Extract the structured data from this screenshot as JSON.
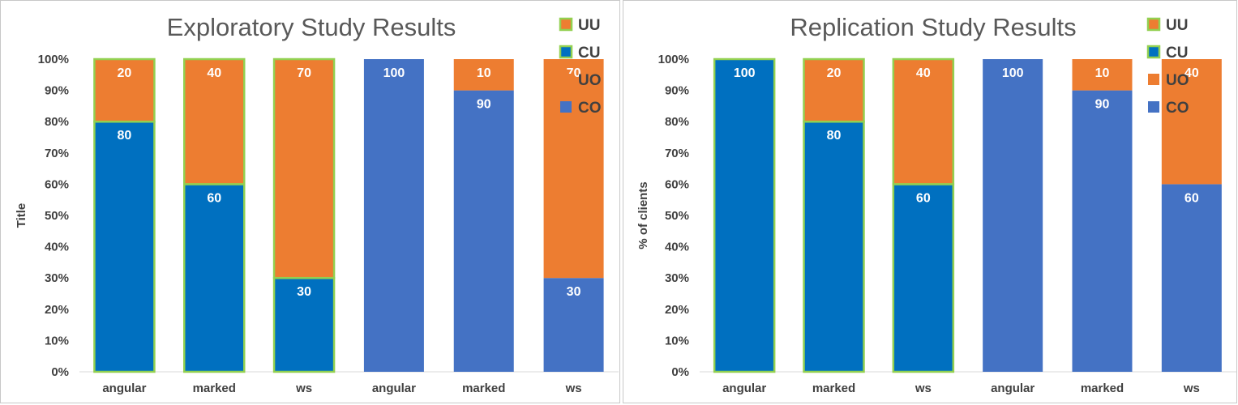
{
  "colors": {
    "UU": "#ED7D31",
    "CU": "#0070C0",
    "UO": "#ED7D31",
    "CO": "#4472C4",
    "outline": "#92D050"
  },
  "chart_data": [
    {
      "type": "bar",
      "stacked": true,
      "percent": true,
      "title": "Exploratory Study Results",
      "xlabel": "",
      "ylabel": "Title",
      "ylim": [
        0,
        100
      ],
      "yticks": [
        "0%",
        "10%",
        "20%",
        "30%",
        "40%",
        "50%",
        "60%",
        "70%",
        "80%",
        "90%",
        "100%"
      ],
      "categories": [
        "angular",
        "marked",
        "ws",
        "angular",
        "marked",
        "ws"
      ],
      "legend_position": "top-right",
      "legend": [
        "UU",
        "CU",
        "UO",
        "CO"
      ],
      "series": [
        {
          "name": "CU",
          "values": [
            80,
            60,
            30,
            0,
            0,
            0
          ]
        },
        {
          "name": "UU",
          "values": [
            20,
            40,
            70,
            0,
            0,
            0
          ]
        },
        {
          "name": "CO",
          "values": [
            0,
            0,
            0,
            100,
            90,
            30
          ]
        },
        {
          "name": "UO",
          "values": [
            0,
            0,
            0,
            0,
            10,
            70
          ]
        }
      ]
    },
    {
      "type": "bar",
      "stacked": true,
      "percent": true,
      "title": "Replication Study Results",
      "xlabel": "",
      "ylabel": "% of clients",
      "ylim": [
        0,
        100
      ],
      "yticks": [
        "0%",
        "10%",
        "20%",
        "30%",
        "40%",
        "50%",
        "60%",
        "70%",
        "80%",
        "90%",
        "100%"
      ],
      "categories": [
        "angular",
        "marked",
        "ws",
        "angular",
        "marked",
        "ws"
      ],
      "legend_position": "top-right",
      "legend": [
        "UU",
        "CU",
        "UO",
        "CO"
      ],
      "series": [
        {
          "name": "CU",
          "values": [
            100,
            80,
            60,
            0,
            0,
            0
          ]
        },
        {
          "name": "UU",
          "values": [
            0,
            20,
            40,
            0,
            0,
            0
          ]
        },
        {
          "name": "CO",
          "values": [
            0,
            0,
            0,
            100,
            90,
            60
          ]
        },
        {
          "name": "UO",
          "values": [
            0,
            0,
            0,
            0,
            10,
            40
          ]
        }
      ]
    }
  ]
}
